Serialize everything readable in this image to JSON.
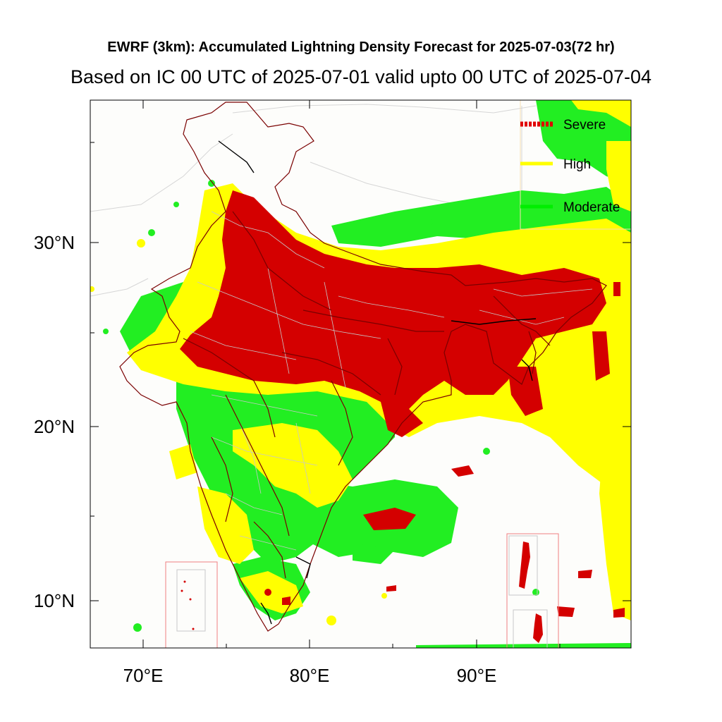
{
  "title": "EWRF (3km): Accumulated Lightning Density Forecast for 2025-07-03(72 hr)",
  "subtitle": "Based on IC 00 UTC of 2025-07-01 valid upto 00 UTC of 2025-07-04",
  "axes": {
    "x_ticks": [
      "70°E",
      "80°E",
      "90°E"
    ],
    "y_ticks": [
      "30°N",
      "20°N",
      "10°N"
    ]
  },
  "legend": {
    "placement": "top-right",
    "items": [
      {
        "label": "Severe",
        "color": "#e00000"
      },
      {
        "label": "High",
        "color": "#ffff00"
      },
      {
        "label": "Moderate",
        "color": "#00ee00"
      }
    ]
  },
  "colors": {
    "severe": "#d40000",
    "high": "#ffff00",
    "moderate": "#22ee22",
    "boundary": "#7a0000",
    "district": "#bdbdbd"
  }
}
